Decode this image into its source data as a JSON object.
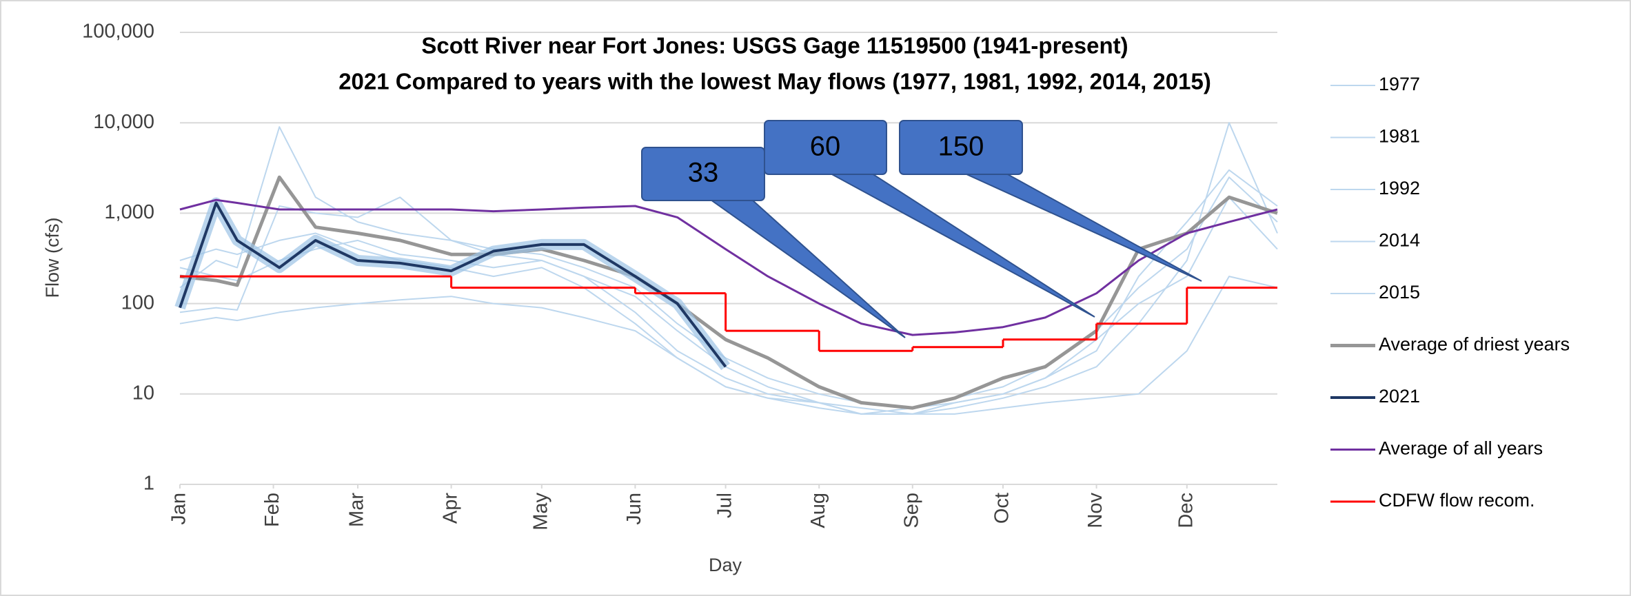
{
  "chart_data": {
    "type": "line",
    "title": "Scott River near Fort Jones: USGS Gage 11519500 (1941-present)",
    "subtitle": "2021 Compared to years with the lowest May flows (1977, 1981, 1992, 2014, 2015)",
    "x_label": "Day",
    "y_label": "Flow (cfs)",
    "log_scale": true,
    "grid": true,
    "legend": "right",
    "xlim": [
      1,
      365
    ],
    "xticks": [
      {
        "value": 1,
        "label": "Jan"
      },
      {
        "value": 32,
        "label": "Feb"
      },
      {
        "value": 60,
        "label": "Mar"
      },
      {
        "value": 91,
        "label": "Apr"
      },
      {
        "value": 121,
        "label": "May"
      },
      {
        "value": 152,
        "label": "Jun"
      },
      {
        "value": 182,
        "label": "Jul"
      },
      {
        "value": 213,
        "label": "Aug"
      },
      {
        "value": 244,
        "label": "Sep"
      },
      {
        "value": 274,
        "label": "Oct"
      },
      {
        "value": 305,
        "label": "Nov"
      },
      {
        "value": 335,
        "label": "Dec"
      }
    ],
    "ylim": [
      1,
      100000
    ],
    "yticks": [
      1,
      10,
      100,
      {
        "value": 1000,
        "label": "1,000"
      },
      {
        "value": 10000,
        "label": "10,000"
      },
      {
        "value": 100000,
        "label": "100,000"
      }
    ],
    "x": [
      1,
      13,
      20,
      34,
      46,
      60,
      74,
      91,
      105,
      121,
      135,
      152,
      166,
      182,
      196,
      213,
      227,
      244,
      258,
      274,
      288,
      305,
      319,
      335,
      349,
      365
    ],
    "series": [
      {
        "name": "1977",
        "color": "#bdd7ee",
        "width": 2,
        "values": [
          60,
          70,
          65,
          80,
          90,
          100,
          110,
          120,
          100,
          90,
          70,
          50,
          25,
          12,
          9,
          8,
          7,
          6,
          6,
          7,
          8,
          9,
          10,
          30,
          200,
          150
        ]
      },
      {
        "name": "1981",
        "color": "#bdd7ee",
        "width": 2,
        "values": [
          150,
          300,
          250,
          9000,
          1500,
          800,
          600,
          500,
          400,
          350,
          250,
          150,
          60,
          25,
          15,
          10,
          8,
          7,
          8,
          10,
          15,
          30,
          200,
          800,
          3000,
          1200
        ]
      },
      {
        "name": "1992",
        "color": "#bdd7ee",
        "width": 2,
        "values": [
          250,
          200,
          180,
          300,
          400,
          500,
          350,
          300,
          250,
          300,
          200,
          120,
          50,
          20,
          12,
          8,
          6,
          6,
          7,
          9,
          12,
          20,
          60,
          300,
          10000,
          600
        ]
      },
      {
        "name": "2014",
        "color": "#bdd7ee",
        "width": 2,
        "values": [
          80,
          90,
          85,
          1200,
          1000,
          900,
          1500,
          500,
          350,
          300,
          200,
          80,
          30,
          15,
          10,
          8,
          6,
          7,
          9,
          12,
          20,
          50,
          150,
          400,
          2500,
          800
        ]
      },
      {
        "name": "2015",
        "color": "#bdd7ee",
        "width": 2,
        "values": [
          300,
          400,
          350,
          500,
          600,
          400,
          300,
          250,
          200,
          250,
          150,
          60,
          25,
          12,
          9,
          7,
          6,
          6,
          8,
          10,
          15,
          40,
          100,
          200,
          1500,
          400
        ]
      },
      {
        "name": "Average of driest years",
        "color": "#969696",
        "width": 5,
        "values": [
          200,
          180,
          160,
          2500,
          700,
          600,
          500,
          350,
          350,
          400,
          300,
          200,
          100,
          40,
          25,
          12,
          8,
          7,
          9,
          15,
          20,
          50,
          400,
          600,
          1500,
          1000
        ]
      },
      {
        "name": "2021",
        "color": "#1f3864",
        "width": 4,
        "glow": true,
        "values": [
          90,
          1300,
          500,
          250,
          500,
          300,
          280,
          230,
          380,
          450,
          450,
          200,
          100,
          20,
          null,
          null,
          null,
          null,
          null,
          null,
          null,
          null,
          null,
          null,
          null,
          null
        ]
      },
      {
        "name": "Average of all years",
        "color": "#7030a0",
        "width": 3,
        "values": [
          1100,
          1400,
          1300,
          1100,
          1100,
          1100,
          1100,
          1100,
          1050,
          1100,
          1150,
          1200,
          900,
          400,
          200,
          100,
          60,
          45,
          48,
          55,
          70,
          130,
          300,
          600,
          800,
          1100
        ]
      },
      {
        "name": "CDFW flow recom.",
        "color": "#ff0000",
        "width": 3,
        "step": true,
        "x": [
          1,
          91,
          152,
          182,
          213,
          244,
          274,
          305,
          335
        ],
        "values": [
          200,
          150,
          130,
          50,
          30,
          33,
          40,
          60,
          150
        ]
      }
    ],
    "annotations": [
      {
        "text": "33"
      },
      {
        "text": "60"
      },
      {
        "text": "150"
      }
    ]
  }
}
